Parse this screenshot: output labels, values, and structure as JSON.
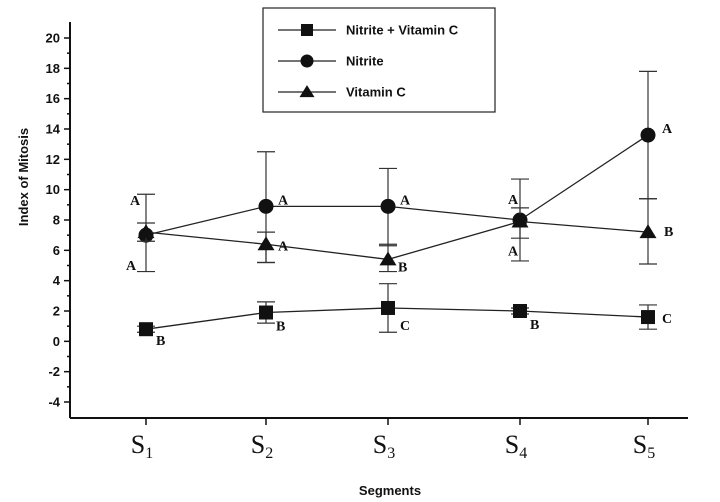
{
  "chart_data": {
    "type": "line",
    "xlabel": "Segments",
    "ylabel": "Index of Mitosis",
    "ylim": [
      -4,
      20
    ],
    "yticks": [
      -4,
      -3,
      -2,
      -1,
      0,
      1,
      2,
      3,
      4,
      5,
      6,
      7,
      8,
      9,
      10,
      11,
      12,
      13,
      14,
      15,
      16,
      17,
      18,
      19,
      20
    ],
    "ytick_labels": [
      "-4",
      "",
      "-2",
      "",
      "0",
      "",
      "2",
      "",
      "4",
      "",
      "6",
      "",
      "8",
      "",
      "10",
      "",
      "12",
      "",
      "14",
      "",
      "16",
      "",
      "18",
      "",
      "20"
    ],
    "categories": [
      {
        "main": "S",
        "sub": "1"
      },
      {
        "main": "S",
        "sub": "2"
      },
      {
        "main": "S",
        "sub": "3"
      },
      {
        "main": "S",
        "sub": "4"
      },
      {
        "main": "S",
        "sub": "5"
      }
    ],
    "legend_position": "top-center",
    "grid": false,
    "series": [
      {
        "name": "Nitrite + Vitamin C",
        "marker": "square",
        "values": [
          0.8,
          1.9,
          2.2,
          2.0,
          1.6
        ],
        "err_low": [
          0.6,
          1.2,
          0.6,
          1.8,
          0.8
        ],
        "err_high": [
          1.0,
          2.6,
          3.8,
          2.2,
          2.4
        ],
        "labels": [
          "B",
          "B",
          "C",
          "B",
          "C"
        ]
      },
      {
        "name": "Nitrite",
        "marker": "circle",
        "values": [
          7.0,
          8.9,
          8.9,
          8.0,
          13.6
        ],
        "err_low": [
          4.6,
          5.2,
          6.3,
          5.3,
          9.4
        ],
        "err_high": [
          9.7,
          12.5,
          11.4,
          10.7,
          17.8
        ],
        "labels": [
          "A",
          "A",
          "A",
          "A",
          "A"
        ]
      },
      {
        "name": "Vitamin C",
        "marker": "triangle",
        "values": [
          7.2,
          6.4,
          5.4,
          7.9,
          7.2
        ],
        "err_low": [
          6.6,
          5.2,
          4.6,
          6.8,
          5.1
        ],
        "err_high": [
          7.8,
          7.2,
          6.4,
          8.8,
          9.4
        ],
        "labels": [
          "A",
          "A",
          "B",
          "A",
          "B"
        ]
      }
    ]
  }
}
